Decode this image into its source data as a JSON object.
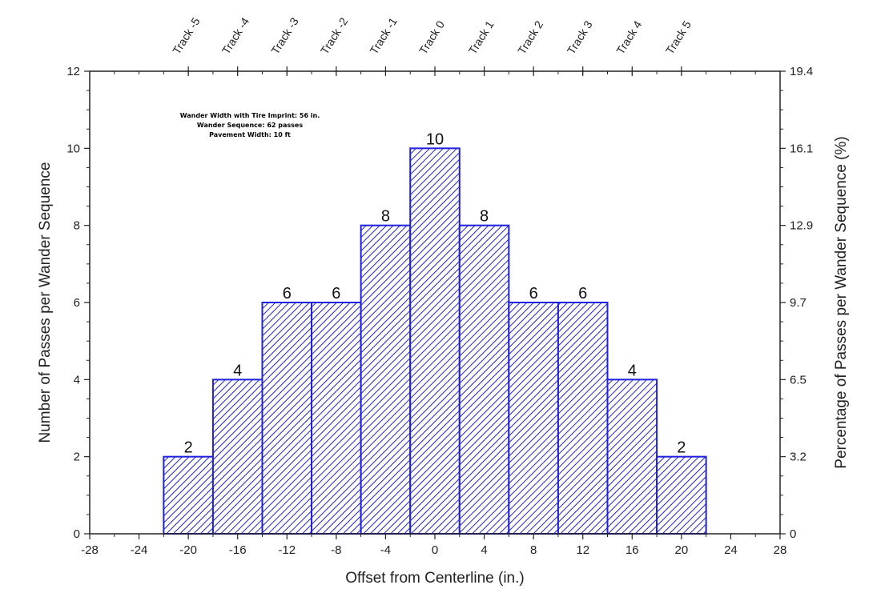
{
  "chart_data": {
    "type": "bar",
    "xlabel": "Offset from Centerline (in.)",
    "ylabel": "Number of Passes per Wander Sequence",
    "y2label": "Percentage of Passes per Wander Sequence (%)",
    "xlim": [
      -28,
      28
    ],
    "ylim": [
      0,
      12
    ],
    "x_ticks": [
      "-28",
      "-24",
      "-20",
      "-16",
      "-12",
      "-8",
      "-4",
      "0",
      "4",
      "8",
      "12",
      "16",
      "20",
      "24",
      "28"
    ],
    "y_ticks": [
      "0",
      "2",
      "4",
      "6",
      "8",
      "10",
      "12"
    ],
    "y2_ticks": [
      "0",
      "3.2",
      "6.5",
      "9.7",
      "12.9",
      "16.1",
      "19.4"
    ],
    "bin_width": 4,
    "bars": [
      {
        "x": -20,
        "value": 2,
        "label": "2"
      },
      {
        "x": -16,
        "value": 4,
        "label": "4"
      },
      {
        "x": -12,
        "value": 6,
        "label": "6"
      },
      {
        "x": -8,
        "value": 6,
        "label": "6"
      },
      {
        "x": -4,
        "value": 8,
        "label": "8"
      },
      {
        "x": 0,
        "value": 10,
        "label": "10"
      },
      {
        "x": 4,
        "value": 8,
        "label": "8"
      },
      {
        "x": 8,
        "value": 6,
        "label": "6"
      },
      {
        "x": 12,
        "value": 6,
        "label": "6"
      },
      {
        "x": 16,
        "value": 4,
        "label": "4"
      },
      {
        "x": 20,
        "value": 2,
        "label": "2"
      }
    ],
    "tracks": [
      {
        "x": -20,
        "label": "Track -5"
      },
      {
        "x": -16,
        "label": "Track -4"
      },
      {
        "x": -12,
        "label": "Track -3"
      },
      {
        "x": -8,
        "label": "Track -2"
      },
      {
        "x": -4,
        "label": "Track -1"
      },
      {
        "x": 0,
        "label": "Track 0"
      },
      {
        "x": 4,
        "label": "Track 1"
      },
      {
        "x": 8,
        "label": "Track 2"
      },
      {
        "x": 12,
        "label": "Track 3"
      },
      {
        "x": 16,
        "label": "Track 4"
      },
      {
        "x": 20,
        "label": "Track 5"
      }
    ],
    "annotations": [
      "Wander Width with Tire Imprint: 56 in.",
      "Wander Sequence: 62 passes",
      "Pavement Width: 10 ft"
    ],
    "bar_color": "#2020e0",
    "hatch": "diagonal",
    "grid": false
  }
}
